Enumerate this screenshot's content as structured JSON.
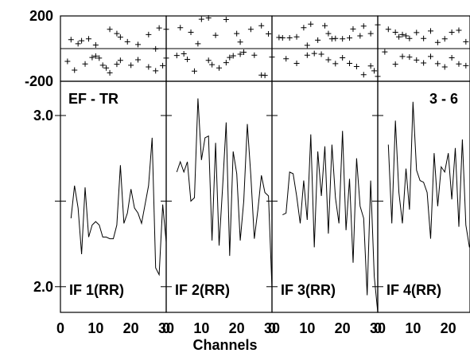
{
  "figure": {
    "top_corner_label": "EF - TR",
    "top_right_label": "3 - 6",
    "xlabel": "Channels"
  },
  "chart_data": {
    "type": "line",
    "xlim": [
      0,
      30
    ],
    "x_ticks": [
      "0",
      "10",
      "20",
      "30"
    ],
    "phase_strip": {
      "type": "scatter",
      "ylim": [
        -200,
        200
      ],
      "y_ticks": [
        "200",
        "-200"
      ],
      "marker": "+"
    },
    "amplitude": {
      "ylim": [
        1.85,
        3.2
      ],
      "y_ticks": [
        "3.0",
        "2.0"
      ]
    },
    "panels": [
      {
        "label": "IF 1(RR)",
        "phase": [
          {
            "x": 3,
            "y": 55
          },
          {
            "x": 5,
            "y": 30
          },
          {
            "x": 6,
            "y": 48
          },
          {
            "x": 8,
            "y": 60
          },
          {
            "x": 10,
            "y": 22
          },
          {
            "x": 14,
            "y": 118
          },
          {
            "x": 16,
            "y": 92
          },
          {
            "x": 17,
            "y": 70
          },
          {
            "x": 19,
            "y": 42
          },
          {
            "x": 25,
            "y": 86
          },
          {
            "x": 28,
            "y": 126
          },
          {
            "x": 30,
            "y": 118
          },
          {
            "x": 22,
            "y": 25
          },
          {
            "x": 27,
            "y": -2
          },
          {
            "x": 2,
            "y": -78
          },
          {
            "x": 4,
            "y": -132
          },
          {
            "x": 7,
            "y": -94
          },
          {
            "x": 9,
            "y": -54
          },
          {
            "x": 10,
            "y": -46
          },
          {
            "x": 11,
            "y": -58
          },
          {
            "x": 12,
            "y": -102
          },
          {
            "x": 13,
            "y": -118
          },
          {
            "x": 14,
            "y": -148
          },
          {
            "x": 16,
            "y": -96
          },
          {
            "x": 17,
            "y": -72
          },
          {
            "x": 20,
            "y": -102
          },
          {
            "x": 22,
            "y": -68
          },
          {
            "x": 25,
            "y": -112
          },
          {
            "x": 27,
            "y": -136
          },
          {
            "x": 29,
            "y": -104
          },
          {
            "x": 30,
            "y": -58
          }
        ],
        "amplitude": [
          {
            "x": 3,
            "y": 2.4
          },
          {
            "x": 4,
            "y": 2.59
          },
          {
            "x": 5,
            "y": 2.46
          },
          {
            "x": 6,
            "y": 2.19
          },
          {
            "x": 7,
            "y": 2.58
          },
          {
            "x": 8,
            "y": 2.29
          },
          {
            "x": 9,
            "y": 2.36
          },
          {
            "x": 10,
            "y": 2.38
          },
          {
            "x": 11,
            "y": 2.36
          },
          {
            "x": 12,
            "y": 2.29
          },
          {
            "x": 13,
            "y": 2.29
          },
          {
            "x": 14,
            "y": 2.28
          },
          {
            "x": 15,
            "y": 2.28
          },
          {
            "x": 16,
            "y": 2.36
          },
          {
            "x": 17,
            "y": 2.71
          },
          {
            "x": 18,
            "y": 2.37
          },
          {
            "x": 19,
            "y": 2.43
          },
          {
            "x": 20,
            "y": 2.57
          },
          {
            "x": 21,
            "y": 2.46
          },
          {
            "x": 22,
            "y": 2.43
          },
          {
            "x": 23,
            "y": 2.37
          },
          {
            "x": 24,
            "y": 2.48
          },
          {
            "x": 25,
            "y": 2.59
          },
          {
            "x": 26,
            "y": 2.87
          },
          {
            "x": 27,
            "y": 2.11
          },
          {
            "x": 28,
            "y": 2.07
          },
          {
            "x": 29,
            "y": 2.48
          },
          {
            "x": 30,
            "y": 2.26
          }
        ]
      },
      {
        "label": "IF 2(RR)",
        "phase": [
          {
            "x": 4,
            "y": 128
          },
          {
            "x": 7,
            "y": 100
          },
          {
            "x": 10,
            "y": 180
          },
          {
            "x": 12,
            "y": 188
          },
          {
            "x": 14,
            "y": 82
          },
          {
            "x": 17,
            "y": 178
          },
          {
            "x": 20,
            "y": 92
          },
          {
            "x": 21,
            "y": 40
          },
          {
            "x": 24,
            "y": 118
          },
          {
            "x": 27,
            "y": 140
          },
          {
            "x": 29,
            "y": 90
          },
          {
            "x": 9,
            "y": 30
          },
          {
            "x": 3,
            "y": -42
          },
          {
            "x": 5,
            "y": -32
          },
          {
            "x": 6,
            "y": -66
          },
          {
            "x": 8,
            "y": -138
          },
          {
            "x": 12,
            "y": -72
          },
          {
            "x": 13,
            "y": -98
          },
          {
            "x": 17,
            "y": -86
          },
          {
            "x": 18,
            "y": -54
          },
          {
            "x": 19,
            "y": -44
          },
          {
            "x": 21,
            "y": -34
          },
          {
            "x": 22,
            "y": -22
          },
          {
            "x": 25,
            "y": -40
          },
          {
            "x": 27,
            "y": -162
          },
          {
            "x": 28,
            "y": -164
          },
          {
            "x": 30,
            "y": -52
          },
          {
            "x": 15,
            "y": -118
          }
        ],
        "amplitude": [
          {
            "x": 3,
            "y": 2.67
          },
          {
            "x": 4,
            "y": 2.73
          },
          {
            "x": 5,
            "y": 2.67
          },
          {
            "x": 6,
            "y": 2.73
          },
          {
            "x": 7,
            "y": 2.5
          },
          {
            "x": 8,
            "y": 2.52
          },
          {
            "x": 9,
            "y": 3.1
          },
          {
            "x": 10,
            "y": 2.74
          },
          {
            "x": 11,
            "y": 2.87
          },
          {
            "x": 12,
            "y": 2.88
          },
          {
            "x": 13,
            "y": 2.27
          },
          {
            "x": 14,
            "y": 2.84
          },
          {
            "x": 15,
            "y": 2.24
          },
          {
            "x": 16,
            "y": 2.58
          },
          {
            "x": 17,
            "y": 2.96
          },
          {
            "x": 18,
            "y": 2.18
          },
          {
            "x": 19,
            "y": 2.79
          },
          {
            "x": 20,
            "y": 2.66
          },
          {
            "x": 21,
            "y": 2.27
          },
          {
            "x": 22,
            "y": 2.5
          },
          {
            "x": 23,
            "y": 2.95
          },
          {
            "x": 24,
            "y": 2.65
          },
          {
            "x": 25,
            "y": 2.28
          },
          {
            "x": 26,
            "y": 2.45
          },
          {
            "x": 27,
            "y": 2.65
          },
          {
            "x": 28,
            "y": 2.55
          },
          {
            "x": 29,
            "y": 2.53
          },
          {
            "x": 30,
            "y": 1.99
          }
        ]
      },
      {
        "label": "IF 3(RR)",
        "phase": [
          {
            "x": 2,
            "y": 68
          },
          {
            "x": 3,
            "y": 66
          },
          {
            "x": 5,
            "y": 66
          },
          {
            "x": 7,
            "y": 72
          },
          {
            "x": 9,
            "y": 128
          },
          {
            "x": 11,
            "y": 150
          },
          {
            "x": 13,
            "y": 52
          },
          {
            "x": 15,
            "y": 140
          },
          {
            "x": 16,
            "y": 92
          },
          {
            "x": 17,
            "y": 60
          },
          {
            "x": 18,
            "y": 62
          },
          {
            "x": 20,
            "y": 60
          },
          {
            "x": 22,
            "y": 65
          },
          {
            "x": 23,
            "y": 120
          },
          {
            "x": 25,
            "y": 78
          },
          {
            "x": 26,
            "y": 138
          },
          {
            "x": 28,
            "y": 92
          },
          {
            "x": 30,
            "y": 146
          },
          {
            "x": 10,
            "y": 20
          },
          {
            "x": 4,
            "y": -62
          },
          {
            "x": 7,
            "y": -90
          },
          {
            "x": 10,
            "y": -40
          },
          {
            "x": 12,
            "y": -30
          },
          {
            "x": 14,
            "y": -34
          },
          {
            "x": 16,
            "y": -68
          },
          {
            "x": 18,
            "y": -92
          },
          {
            "x": 20,
            "y": -56
          },
          {
            "x": 22,
            "y": -90
          },
          {
            "x": 24,
            "y": -110
          },
          {
            "x": 26,
            "y": -160
          },
          {
            "x": 28,
            "y": -106
          },
          {
            "x": 29,
            "y": -136
          },
          {
            "x": 30,
            "y": -170
          }
        ],
        "amplitude": [
          {
            "x": 3,
            "y": 2.42
          },
          {
            "x": 4,
            "y": 2.43
          },
          {
            "x": 5,
            "y": 2.67
          },
          {
            "x": 6,
            "y": 2.66
          },
          {
            "x": 7,
            "y": 2.53
          },
          {
            "x": 8,
            "y": 2.37
          },
          {
            "x": 9,
            "y": 2.62
          },
          {
            "x": 10,
            "y": 2.39
          },
          {
            "x": 11,
            "y": 2.89
          },
          {
            "x": 12,
            "y": 2.23
          },
          {
            "x": 13,
            "y": 2.79
          },
          {
            "x": 14,
            "y": 2.53
          },
          {
            "x": 15,
            "y": 2.82
          },
          {
            "x": 16,
            "y": 2.31
          },
          {
            "x": 17,
            "y": 2.83
          },
          {
            "x": 18,
            "y": 2.52
          },
          {
            "x": 19,
            "y": 2.37
          },
          {
            "x": 20,
            "y": 2.91
          },
          {
            "x": 21,
            "y": 2.33
          },
          {
            "x": 22,
            "y": 2.63
          },
          {
            "x": 23,
            "y": 2.14
          },
          {
            "x": 24,
            "y": 2.75
          },
          {
            "x": 25,
            "y": 2.47
          },
          {
            "x": 26,
            "y": 2.4
          },
          {
            "x": 27,
            "y": 1.95
          },
          {
            "x": 28,
            "y": 2.62
          },
          {
            "x": 29,
            "y": 2.06
          },
          {
            "x": 30,
            "y": 1.85
          }
        ]
      },
      {
        "label": "IF 4(RR)",
        "phase": [
          {
            "x": 3,
            "y": 118
          },
          {
            "x": 5,
            "y": 100
          },
          {
            "x": 6,
            "y": 72
          },
          {
            "x": 7,
            "y": 86
          },
          {
            "x": 9,
            "y": 62
          },
          {
            "x": 11,
            "y": 98
          },
          {
            "x": 13,
            "y": 62
          },
          {
            "x": 15,
            "y": 108
          },
          {
            "x": 17,
            "y": 38
          },
          {
            "x": 19,
            "y": 60
          },
          {
            "x": 21,
            "y": 100
          },
          {
            "x": 23,
            "y": 112
          },
          {
            "x": 25,
            "y": 42
          },
          {
            "x": 27,
            "y": 62
          },
          {
            "x": 29,
            "y": 128
          },
          {
            "x": 8,
            "y": 78
          },
          {
            "x": 2,
            "y": -20
          },
          {
            "x": 5,
            "y": -96
          },
          {
            "x": 7,
            "y": -48
          },
          {
            "x": 9,
            "y": -52
          },
          {
            "x": 11,
            "y": -70
          },
          {
            "x": 13,
            "y": -88
          },
          {
            "x": 15,
            "y": -48
          },
          {
            "x": 17,
            "y": -92
          },
          {
            "x": 19,
            "y": -112
          },
          {
            "x": 21,
            "y": -56
          },
          {
            "x": 23,
            "y": -94
          },
          {
            "x": 25,
            "y": -104
          },
          {
            "x": 27,
            "y": -20
          },
          {
            "x": 28,
            "y": -50
          },
          {
            "x": 29,
            "y": -26
          },
          {
            "x": 30,
            "y": -16
          }
        ],
        "amplitude": [
          {
            "x": 3,
            "y": 2.83
          },
          {
            "x": 4,
            "y": 2.37
          },
          {
            "x": 5,
            "y": 2.97
          },
          {
            "x": 6,
            "y": 2.55
          },
          {
            "x": 7,
            "y": 2.37
          },
          {
            "x": 8,
            "y": 2.69
          },
          {
            "x": 9,
            "y": 2.45
          },
          {
            "x": 10,
            "y": 3.08
          },
          {
            "x": 11,
            "y": 2.68
          },
          {
            "x": 12,
            "y": 2.62
          },
          {
            "x": 13,
            "y": 2.61
          },
          {
            "x": 14,
            "y": 2.55
          },
          {
            "x": 15,
            "y": 2.28
          },
          {
            "x": 16,
            "y": 2.78
          },
          {
            "x": 17,
            "y": 2.47
          },
          {
            "x": 18,
            "y": 2.7
          },
          {
            "x": 19,
            "y": 2.67
          },
          {
            "x": 20,
            "y": 2.78
          },
          {
            "x": 21,
            "y": 2.51
          },
          {
            "x": 22,
            "y": 2.81
          },
          {
            "x": 23,
            "y": 2.35
          },
          {
            "x": 24,
            "y": 2.86
          },
          {
            "x": 25,
            "y": 2.36
          },
          {
            "x": 26,
            "y": 2.23
          },
          {
            "x": 27,
            "y": 2.34
          },
          {
            "x": 28,
            "y": 2.19
          },
          {
            "x": 29,
            "y": 2.17
          },
          {
            "x": 30,
            "y": 2.25
          }
        ]
      }
    ]
  }
}
